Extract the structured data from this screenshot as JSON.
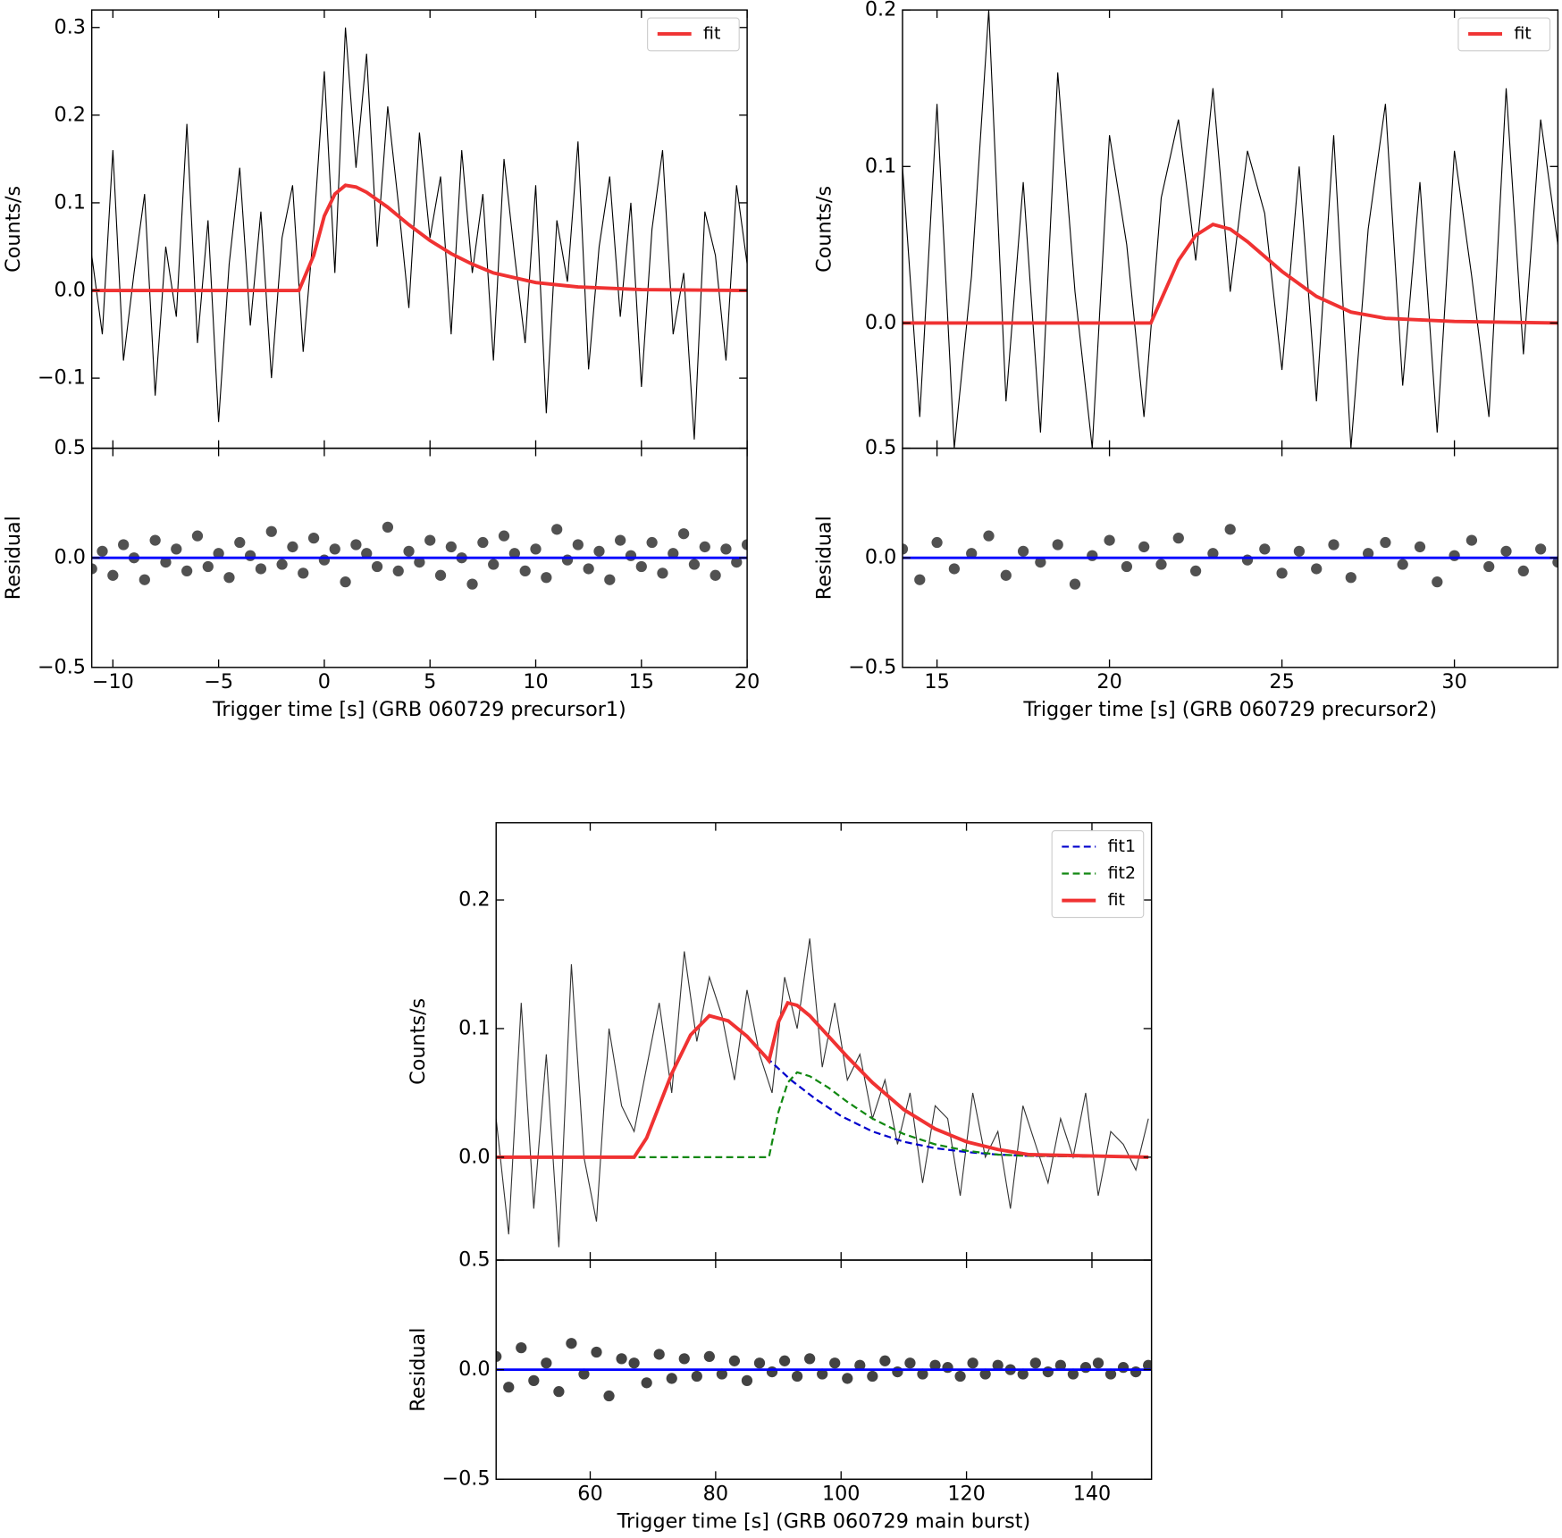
{
  "chart_data": [
    {
      "type": "line",
      "xlabel": "Trigger time [s] (GRB 060729 precursor1)",
      "xlim": [
        -11,
        20
      ],
      "xticks": [
        {
          "value": -10,
          "label": "−10"
        },
        {
          "value": -5,
          "label": "−5"
        },
        0,
        5,
        10,
        15,
        20
      ],
      "x": [
        -11,
        -10.5,
        -10,
        -9.5,
        -9,
        -8.5,
        -8,
        -7.5,
        -7,
        -6.5,
        -6,
        -5.5,
        -5,
        -4.5,
        -4,
        -3.5,
        -3,
        -2.5,
        -2,
        -1.5,
        -1,
        -0.5,
        0,
        0.5,
        1,
        1.5,
        2,
        2.5,
        3,
        3.5,
        4,
        4.5,
        5,
        5.5,
        6,
        6.5,
        7,
        7.5,
        8,
        8.5,
        9,
        9.5,
        10,
        10.5,
        11,
        11.5,
        12,
        12.5,
        13,
        13.5,
        14,
        14.5,
        15,
        15.5,
        16,
        16.5,
        17,
        17.5,
        18,
        18.5,
        19,
        19.5,
        20
      ],
      "legend": "upper right",
      "top": {
        "ylabel": "Counts/s",
        "ylim": [
          -0.18,
          0.32
        ],
        "yticks": [
          {
            "value": -0.1,
            "label": "−0.1"
          },
          {
            "value": 0,
            "label": "0.0"
          },
          0.1,
          0.2,
          0.3
        ],
        "series": [
          {
            "color": "#000000",
            "values": [
              0.04,
              -0.05,
              0.16,
              -0.08,
              0.02,
              0.11,
              -0.12,
              0.05,
              -0.03,
              0.19,
              -0.06,
              0.08,
              -0.15,
              0.03,
              0.14,
              -0.04,
              0.09,
              -0.1,
              0.06,
              0.12,
              -0.07,
              0.07,
              0.25,
              0.02,
              0.3,
              0.14,
              0.27,
              0.05,
              0.21,
              0.1,
              -0.02,
              0.18,
              0.06,
              0.13,
              -0.05,
              0.16,
              0.02,
              0.11,
              -0.08,
              0.15,
              0.04,
              -0.06,
              0.12,
              -0.14,
              0.08,
              0.01,
              0.17,
              -0.09,
              0.05,
              0.13,
              -0.03,
              0.1,
              -0.11,
              0.07,
              0.16,
              -0.05,
              0.02,
              -0.17,
              0.09,
              0.04,
              -0.08,
              0.12,
              0.03
            ]
          },
          {
            "name": "fit",
            "color": "#f03232",
            "x": [
              -11,
              -1.2,
              -0.5,
              0,
              0.5,
              1,
              1.5,
              2,
              3,
              4,
              5,
              6,
              7,
              8,
              10,
              12,
              15,
              20
            ],
            "values": [
              0,
              0,
              0.04,
              0.085,
              0.11,
              0.12,
              0.118,
              0.112,
              0.095,
              0.075,
              0.057,
              0.042,
              0.03,
              0.02,
              0.009,
              0.004,
              0.001,
              0
            ]
          }
        ]
      },
      "bottom": {
        "ylabel": "Residual",
        "ylim": [
          -0.5,
          0.5
        ],
        "yticks": [
          {
            "value": -0.5,
            "label": "−0.5"
          },
          {
            "value": 0,
            "label": "0.0"
          },
          0.5
        ],
        "series": [
          {
            "style": "scatter",
            "color": "#333333",
            "values": [
              -0.05,
              0.03,
              -0.08,
              0.06,
              0.0,
              -0.1,
              0.08,
              -0.02,
              0.04,
              -0.06,
              0.1,
              -0.04,
              0.02,
              -0.09,
              0.07,
              0.01,
              -0.05,
              0.12,
              -0.03,
              0.05,
              -0.07,
              0.09,
              -0.01,
              0.04,
              -0.11,
              0.06,
              0.02,
              -0.04,
              0.14,
              -0.06,
              0.03,
              -0.02,
              0.08,
              -0.08,
              0.05,
              0.0,
              -0.12,
              0.07,
              -0.03,
              0.1,
              0.02,
              -0.06,
              0.04,
              -0.09,
              0.13,
              -0.01,
              0.06,
              -0.05,
              0.03,
              -0.1,
              0.08,
              0.01,
              -0.04,
              0.07,
              -0.07,
              0.02,
              0.11,
              -0.03,
              0.05,
              -0.08,
              0.04,
              -0.02,
              0.06
            ]
          },
          {
            "color": "#0000ff",
            "x": [
              -11,
              20
            ],
            "values": [
              0,
              0
            ]
          }
        ]
      }
    },
    {
      "type": "line",
      "xlabel": "Trigger time [s] (GRB 060729 precursor2)",
      "xlim": [
        14,
        33
      ],
      "xticks": [
        15,
        20,
        25,
        30
      ],
      "x": [
        14,
        14.5,
        15,
        15.5,
        16,
        16.5,
        17,
        17.5,
        18,
        18.5,
        19,
        19.5,
        20,
        20.5,
        21,
        21.5,
        22,
        22.5,
        23,
        23.5,
        24,
        24.5,
        25,
        25.5,
        26,
        26.5,
        27,
        27.5,
        28,
        28.5,
        29,
        29.5,
        30,
        30.5,
        31,
        31.5,
        32,
        32.5,
        33
      ],
      "legend": "upper right",
      "top": {
        "ylabel": "Counts/s",
        "ylim": [
          -0.08,
          0.2
        ],
        "yticks": [
          {
            "value": 0,
            "label": "0.0"
          },
          0.1,
          0.2
        ],
        "series": [
          {
            "color": "#000000",
            "values": [
              0.1,
              -0.06,
              0.14,
              -0.08,
              0.03,
              0.2,
              -0.05,
              0.09,
              -0.07,
              0.16,
              0.02,
              -0.08,
              0.12,
              0.05,
              -0.06,
              0.08,
              0.13,
              0.04,
              0.15,
              0.02,
              0.11,
              0.07,
              -0.03,
              0.1,
              -0.05,
              0.12,
              -0.08,
              0.06,
              0.14,
              -0.04,
              0.09,
              -0.07,
              0.11,
              0.03,
              -0.06,
              0.15,
              -0.02,
              0.13,
              0.05
            ]
          },
          {
            "name": "fit",
            "color": "#f03232",
            "x": [
              14,
              21.2,
              21.6,
              22,
              22.5,
              23,
              23.5,
              24,
              25,
              26,
              27,
              28,
              30,
              33
            ],
            "values": [
              0,
              0,
              0.02,
              0.04,
              0.056,
              0.063,
              0.06,
              0.052,
              0.033,
              0.017,
              0.007,
              0.003,
              0.001,
              0
            ]
          }
        ]
      },
      "bottom": {
        "ylabel": "Residual",
        "ylim": [
          -0.5,
          0.5
        ],
        "yticks": [
          {
            "value": -0.5,
            "label": "−0.5"
          },
          {
            "value": 0,
            "label": "0.0"
          },
          0.5
        ],
        "series": [
          {
            "style": "scatter",
            "color": "#333333",
            "values": [
              0.04,
              -0.1,
              0.07,
              -0.05,
              0.02,
              0.1,
              -0.08,
              0.03,
              -0.02,
              0.06,
              -0.12,
              0.01,
              0.08,
              -0.04,
              0.05,
              -0.03,
              0.09,
              -0.06,
              0.02,
              0.13,
              -0.01,
              0.04,
              -0.07,
              0.03,
              -0.05,
              0.06,
              -0.09,
              0.02,
              0.07,
              -0.03,
              0.05,
              -0.11,
              0.01,
              0.08,
              -0.04,
              0.03,
              -0.06,
              0.04,
              -0.02
            ]
          },
          {
            "color": "#0000ff",
            "x": [
              14,
              33
            ],
            "values": [
              0,
              0
            ]
          }
        ]
      }
    },
    {
      "type": "line",
      "xlabel": "Trigger time [s] (GRB 060729 main burst)",
      "xlim": [
        45,
        149.5
      ],
      "xticks": [
        60,
        80,
        100,
        120,
        140
      ],
      "x": [
        45,
        47,
        49,
        51,
        53,
        55,
        57,
        59,
        61,
        63,
        65,
        67,
        69,
        71,
        73,
        75,
        77,
        79,
        81,
        83,
        85,
        87,
        89,
        91,
        93,
        95,
        97,
        99,
        101,
        103,
        105,
        107,
        109,
        111,
        113,
        115,
        117,
        119,
        121,
        123,
        125,
        127,
        129,
        131,
        133,
        135,
        137,
        139,
        141,
        143,
        145,
        147,
        149
      ],
      "legend": "upper right",
      "top": {
        "ylabel": "Counts/s",
        "ylim": [
          -0.08,
          0.26
        ],
        "yticks": [
          {
            "value": 0,
            "label": "0.0"
          },
          0.1,
          0.2
        ],
        "series": [
          {
            "color": "#333333",
            "values": [
              0.03,
              -0.06,
              0.12,
              -0.04,
              0.08,
              -0.07,
              0.15,
              0.0,
              -0.05,
              0.1,
              0.04,
              0.02,
              0.07,
              0.12,
              0.05,
              0.16,
              0.09,
              0.14,
              0.11,
              0.06,
              0.13,
              0.08,
              0.05,
              0.14,
              0.1,
              0.17,
              0.07,
              0.12,
              0.06,
              0.08,
              0.03,
              0.06,
              0.01,
              0.05,
              -0.02,
              0.04,
              0.03,
              -0.03,
              0.05,
              0.0,
              0.02,
              -0.04,
              0.04,
              0.01,
              -0.02,
              0.03,
              0.0,
              0.05,
              -0.03,
              0.02,
              0.01,
              -0.01,
              0.03
            ]
          },
          {
            "name": "fit1",
            "style": "dashed",
            "color": "#0000cc",
            "x": [
              45,
              67,
              69,
              71,
              73,
              76,
              79,
              82,
              85,
              88,
              92,
              96,
              100,
              105,
              110,
              115,
              120,
              125,
              130,
              149
            ],
            "values": [
              0,
              0,
              0.015,
              0.04,
              0.065,
              0.095,
              0.11,
              0.106,
              0.094,
              0.078,
              0.06,
              0.045,
              0.032,
              0.02,
              0.012,
              0.007,
              0.004,
              0.002,
              0.001,
              0
            ]
          },
          {
            "name": "fit2",
            "style": "dashed",
            "color": "#118811",
            "x": [
              45,
              88.5,
              90,
              91.5,
              93,
              95,
              98,
              101,
              105,
              110,
              115,
              120,
              125,
              130,
              149
            ],
            "values": [
              0,
              0,
              0.035,
              0.058,
              0.066,
              0.063,
              0.054,
              0.043,
              0.03,
              0.018,
              0.01,
              0.005,
              0.002,
              0.001,
              0
            ]
          },
          {
            "name": "fit",
            "color": "#f03232",
            "x": [
              45,
              67,
              69,
              71,
              73,
              76,
              79,
              82,
              85,
              88,
              88.5,
              90,
              91.5,
              93,
              95,
              98,
              101,
              105,
              110,
              115,
              120,
              125,
              130,
              149
            ],
            "values": [
              0,
              0,
              0.015,
              0.04,
              0.065,
              0.095,
              0.11,
              0.106,
              0.094,
              0.078,
              0.075,
              0.105,
              0.12,
              0.118,
              0.11,
              0.094,
              0.078,
              0.058,
              0.037,
              0.022,
              0.012,
              0.006,
              0.002,
              0
            ]
          }
        ]
      },
      "bottom": {
        "ylabel": "Residual",
        "ylim": [
          -0.5,
          0.5
        ],
        "yticks": [
          {
            "value": -0.5,
            "label": "−0.5"
          },
          {
            "value": 0,
            "label": "0.0"
          },
          0.5
        ],
        "series": [
          {
            "style": "scatter",
            "color": "#222222",
            "values": [
              0.06,
              -0.08,
              0.1,
              -0.05,
              0.03,
              -0.1,
              0.12,
              -0.02,
              0.08,
              -0.12,
              0.05,
              0.03,
              -0.06,
              0.07,
              -0.04,
              0.05,
              -0.03,
              0.06,
              -0.02,
              0.04,
              -0.05,
              0.03,
              -0.01,
              0.04,
              -0.03,
              0.05,
              -0.02,
              0.03,
              -0.04,
              0.02,
              -0.03,
              0.04,
              -0.01,
              0.03,
              -0.02,
              0.02,
              0.01,
              -0.03,
              0.03,
              -0.02,
              0.02,
              0.0,
              -0.02,
              0.03,
              -0.01,
              0.02,
              -0.02,
              0.01,
              0.03,
              -0.02,
              0.01,
              -0.01,
              0.02
            ]
          },
          {
            "color": "#0000ff",
            "x": [
              45,
              149.5
            ],
            "values": [
              0,
              0
            ]
          }
        ]
      }
    }
  ]
}
